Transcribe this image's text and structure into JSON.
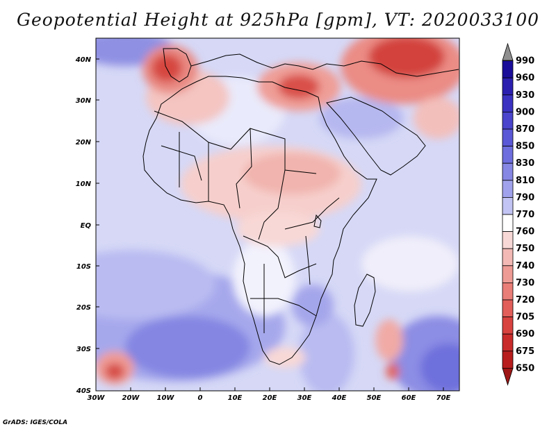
{
  "title": "Geopotential Height at 925hPa [gpm], VT: 2020033100",
  "credit": "GrADS: IGES/COLA",
  "lat_ticks": [
    "40N",
    "30N",
    "20N",
    "10N",
    "EQ",
    "10S",
    "20S",
    "30S",
    "40S"
  ],
  "lon_ticks": [
    "30W",
    "20W",
    "10W",
    "0",
    "10E",
    "20E",
    "30E",
    "40E",
    "50E",
    "60E",
    "70E"
  ],
  "colorbar": [
    {
      "label": "990",
      "color": "#8f8f8f",
      "kind": "over"
    },
    {
      "label": "960",
      "color": "#1a0d9a"
    },
    {
      "label": "930",
      "color": "#2b1fb0"
    },
    {
      "label": "900",
      "color": "#3b32c2"
    },
    {
      "label": "870",
      "color": "#4a45cc"
    },
    {
      "label": "850",
      "color": "#5a58d6"
    },
    {
      "label": "830",
      "color": "#6e6ede"
    },
    {
      "label": "810",
      "color": "#8686e4"
    },
    {
      "label": "790",
      "color": "#a1a2ec"
    },
    {
      "label": "770",
      "color": "#c2c4f3"
    },
    {
      "label": "760",
      "color": "#ffffff"
    },
    {
      "label": "750",
      "color": "#f8d8d6"
    },
    {
      "label": "740",
      "color": "#f3b9b5"
    },
    {
      "label": "730",
      "color": "#ef9b95"
    },
    {
      "label": "720",
      "color": "#e97d77"
    },
    {
      "label": "705",
      "color": "#e15e5a"
    },
    {
      "label": "690",
      "color": "#d8423f"
    },
    {
      "label": "675",
      "color": "#c92b2b"
    },
    {
      "label": "650",
      "color": "#b81e1e"
    },
    {
      "label": "",
      "color": "#9e1616",
      "kind": "under"
    }
  ]
}
